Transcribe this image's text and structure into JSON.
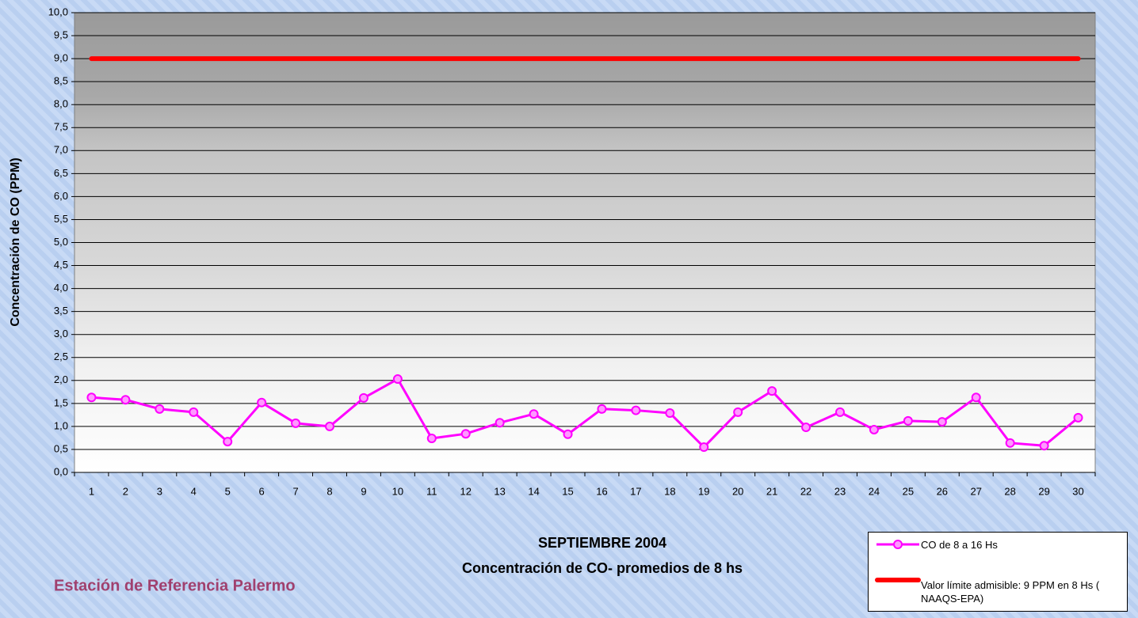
{
  "chart_data": {
    "type": "line",
    "title": "SEPTIEMBRE 2004",
    "subtitle": "Concentración de CO- promedios de 8 hs",
    "ylabel": "Concentración de CO (PPM)",
    "annotation": "Estación de Referencia Palermo",
    "categories": [
      "1",
      "2",
      "3",
      "4",
      "5",
      "6",
      "7",
      "8",
      "9",
      "10",
      "11",
      "12",
      "13",
      "14",
      "15",
      "16",
      "17",
      "18",
      "19",
      "20",
      "21",
      "22",
      "23",
      "24",
      "25",
      "26",
      "27",
      "28",
      "29",
      "30"
    ],
    "series": [
      {
        "name": "CO de 8 a 16 Hs",
        "color": "#ff00ff",
        "marker": "circle",
        "values": [
          1.63,
          1.58,
          1.38,
          1.31,
          0.67,
          1.52,
          1.07,
          1.0,
          1.62,
          2.03,
          0.74,
          0.84,
          1.08,
          1.27,
          0.83,
          1.38,
          1.35,
          1.29,
          0.55,
          1.31,
          1.77,
          0.98,
          1.31,
          0.93,
          1.12,
          1.1,
          1.63,
          0.64,
          0.58,
          1.19
        ]
      },
      {
        "name": "Valor límite admisible: 9 PPM en 8 Hs ( NAAQS-EPA)",
        "color": "#ff0000",
        "values": [
          9,
          9,
          9,
          9,
          9,
          9,
          9,
          9,
          9,
          9,
          9,
          9,
          9,
          9,
          9,
          9,
          9,
          9,
          9,
          9,
          9,
          9,
          9,
          9,
          9,
          9,
          9,
          9,
          9,
          9
        ]
      }
    ],
    "ylim": [
      0,
      10
    ],
    "yticks": [
      {
        "value": 0,
        "label": "0,0"
      },
      {
        "value": 0.5,
        "label": "0,5"
      },
      {
        "value": 1,
        "label": "1,0"
      },
      {
        "value": 1.5,
        "label": "1,5"
      },
      {
        "value": 2,
        "label": "2,0"
      },
      {
        "value": 2.5,
        "label": "2,5"
      },
      {
        "value": 3,
        "label": "3,0"
      },
      {
        "value": 3.5,
        "label": "3,5"
      },
      {
        "value": 4,
        "label": "4,0"
      },
      {
        "value": 4.5,
        "label": "4,5"
      },
      {
        "value": 5,
        "label": "5,0"
      },
      {
        "value": 5.5,
        "label": "5,5"
      },
      {
        "value": 6,
        "label": "6,0"
      },
      {
        "value": 6.5,
        "label": "6,5"
      },
      {
        "value": 7,
        "label": "7,0"
      },
      {
        "value": 7.5,
        "label": "7,5"
      },
      {
        "value": 8,
        "label": "8,0"
      },
      {
        "value": 8.5,
        "label": "8,5"
      },
      {
        "value": 9,
        "label": "9,0"
      },
      {
        "value": 9.5,
        "label": "9,5"
      },
      {
        "value": 10,
        "label": "10,0"
      }
    ],
    "grid": true,
    "legend": "bottom-right"
  }
}
